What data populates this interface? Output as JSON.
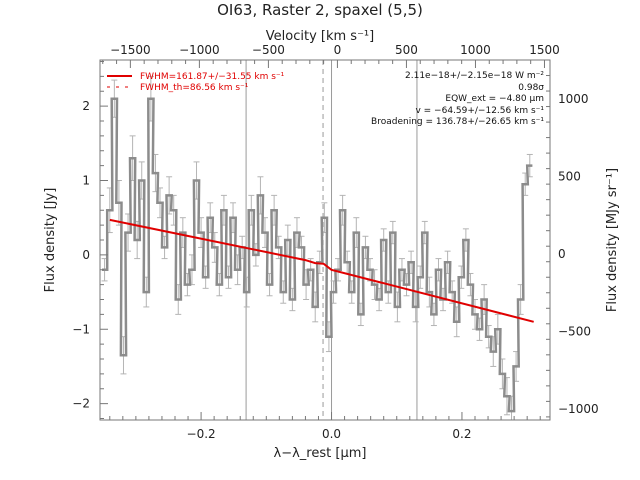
{
  "chart_data": {
    "type": "line",
    "title": "OI63, Raster 2, spaxel (5,5)",
    "xlabel": "λ−λ_rest [μm]",
    "ylabel": "Flux density [Jy]",
    "top_xlabel": "Velocity [km s⁻¹]",
    "right_ylabel": "Flux density [MJy sr⁻¹]",
    "xlim": [
      -0.355,
      0.335
    ],
    "ylim": [
      -2.22,
      2.62
    ],
    "top_xlim": [
      -1720,
      1540
    ],
    "right_ylim": [
      -1070,
      1250
    ],
    "x_ticks": [
      -0.2,
      0.0,
      0.2
    ],
    "x_tick_labels": [
      "−0.2",
      "0.0",
      "0.2"
    ],
    "y_ticks": [
      -2,
      -1,
      0,
      1,
      2
    ],
    "y_tick_labels": [
      "−2",
      "−1",
      "0",
      "1",
      "2"
    ],
    "top_ticks": [
      -1500,
      -1000,
      -500,
      0,
      500,
      1000,
      1500
    ],
    "top_tick_labels": [
      "−1500",
      "−1000",
      "−500",
      "0",
      "500",
      "1000",
      "1500"
    ],
    "right_ticks": [
      -1000,
      -500,
      0,
      500,
      1000
    ],
    "right_tick_labels": [
      "−1000",
      "−500",
      "0",
      "500",
      "1000"
    ],
    "vertical_lines": [
      {
        "x": -0.131,
        "style": "solid"
      },
      {
        "x": -0.013,
        "style": "dashed"
      },
      {
        "x": 0.0,
        "style": "solid"
      },
      {
        "x": 0.131,
        "style": "solid"
      }
    ],
    "legend": {
      "placement": "top-left",
      "entries": [
        {
          "label": "FWHM=161.87+/−31.55 km s⁻¹",
          "style": "solid",
          "color": "#e00000"
        },
        {
          "label": "FWHM_th=86.56 km s⁻¹",
          "style": "dashed",
          "color": "#e00000"
        }
      ]
    },
    "annotations": [
      "2.11e−18+/−2.15e−18 W m⁻²",
      "0.98σ",
      "EQW_ext = −4.80 μm",
      "v = −64.59+/−12.56 km s⁻¹",
      "Broadening = 136.78+/−26.65 km s⁻¹"
    ],
    "series": [
      {
        "name": "data",
        "style": "step",
        "color": "#8c8c8c",
        "x": [
          -0.348,
          -0.34,
          -0.333,
          -0.326,
          -0.319,
          -0.312,
          -0.305,
          -0.298,
          -0.291,
          -0.284,
          -0.277,
          -0.27,
          -0.263,
          -0.256,
          -0.249,
          -0.242,
          -0.235,
          -0.228,
          -0.221,
          -0.214,
          -0.207,
          -0.2,
          -0.193,
          -0.186,
          -0.179,
          -0.172,
          -0.165,
          -0.158,
          -0.151,
          -0.144,
          -0.137,
          -0.13,
          -0.123,
          -0.116,
          -0.109,
          -0.102,
          -0.095,
          -0.088,
          -0.081,
          -0.074,
          -0.067,
          -0.06,
          -0.053,
          -0.046,
          -0.039,
          -0.032,
          -0.025,
          -0.018,
          -0.011,
          -0.004,
          0.003,
          0.01,
          0.017,
          0.024,
          0.031,
          0.038,
          0.045,
          0.052,
          0.059,
          0.066,
          0.073,
          0.08,
          0.087,
          0.094,
          0.101,
          0.108,
          0.115,
          0.122,
          0.129,
          0.136,
          0.143,
          0.15,
          0.157,
          0.164,
          0.171,
          0.178,
          0.185,
          0.192,
          0.199,
          0.206,
          0.213,
          0.22,
          0.227,
          0.234,
          0.241,
          0.248,
          0.255,
          0.262,
          0.269,
          0.276,
          0.283,
          0.29,
          0.297,
          0.304
        ],
        "y": [
          -0.2,
          0.6,
          2.1,
          0.7,
          -1.35,
          0.3,
          1.3,
          0.2,
          1.0,
          -0.5,
          2.1,
          1.1,
          0.7,
          0.1,
          0.8,
          0.6,
          -0.6,
          0.3,
          -0.4,
          -0.2,
          1.0,
          0.3,
          -0.3,
          0.5,
          0.1,
          -0.4,
          0.6,
          -0.3,
          0.5,
          -0.2,
          0.1,
          -0.5,
          0.6,
          0.0,
          0.8,
          0.3,
          -0.4,
          0.6,
          0.1,
          -0.5,
          0.2,
          -0.6,
          0.3,
          0.1,
          -0.4,
          -0.2,
          -0.7,
          -0.1,
          0.5,
          -1.1,
          -0.5,
          -0.2,
          0.6,
          -0.1,
          -0.5,
          0.3,
          -0.8,
          0.1,
          -0.2,
          -0.4,
          -0.6,
          0.2,
          -0.5,
          0.3,
          -0.7,
          -0.2,
          -0.4,
          -0.1,
          -0.7,
          -0.3,
          0.3,
          -0.5,
          -0.8,
          -0.2,
          -0.6,
          -0.1,
          -0.5,
          -0.9,
          -0.3,
          0.2,
          -0.4,
          -0.8,
          -1.0,
          -0.6,
          -1.1,
          -1.3,
          -1.0,
          -1.6,
          -1.9,
          -2.1,
          -1.5,
          -0.6,
          0.95,
          1.2
        ],
        "err": [
          0.15,
          0.3,
          0.25,
          0.3,
          0.25,
          0.25,
          0.3,
          0.25,
          0.25,
          0.2,
          0.3,
          0.25,
          0.2,
          0.15,
          0.25,
          0.2,
          0.2,
          0.2,
          0.15,
          0.2,
          0.25,
          0.2,
          0.15,
          0.2,
          0.2,
          0.15,
          0.2,
          0.15,
          0.2,
          0.2,
          0.15,
          0.2,
          0.2,
          0.15,
          0.25,
          0.2,
          0.15,
          0.2,
          0.15,
          0.15,
          0.2,
          0.15,
          0.2,
          0.15,
          0.2,
          0.15,
          0.2,
          0.15,
          0.2,
          0.2,
          0.15,
          0.15,
          0.2,
          0.15,
          0.15,
          0.2,
          0.15,
          0.15,
          0.15,
          0.2,
          0.15,
          0.15,
          0.15,
          0.15,
          0.2,
          0.15,
          0.15,
          0.15,
          0.2,
          0.15,
          0.15,
          0.2,
          0.15,
          0.15,
          0.15,
          0.15,
          0.15,
          0.2,
          0.15,
          0.15,
          0.15,
          0.2,
          0.15,
          0.2,
          0.15,
          0.2,
          0.2,
          0.2,
          0.25,
          0.2,
          0.2,
          0.2,
          0.15,
          0.15
        ]
      },
      {
        "name": "FWHM=161.87+/−31.55 km s⁻¹",
        "style": "line",
        "color": "#e00000",
        "x": [
          -0.34,
          -0.04,
          -0.025,
          -0.012,
          0.0,
          0.31
        ],
        "y": [
          0.47,
          -0.07,
          -0.11,
          -0.12,
          -0.2,
          -0.9
        ]
      }
    ],
    "grid": false
  }
}
